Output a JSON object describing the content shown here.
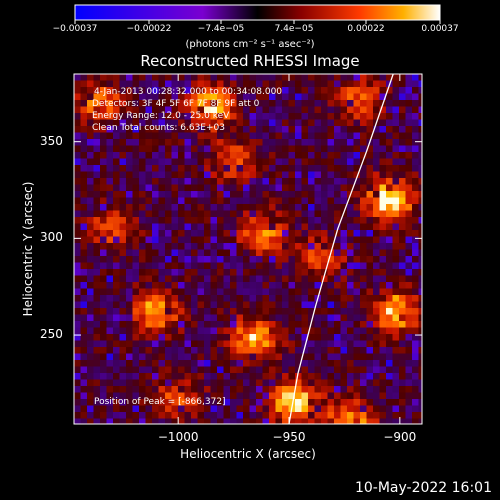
{
  "chart_data": {
    "type": "heatmap",
    "title": "Reconstructed RHESSI Image",
    "xlabel": "Heliocentric X (arcsec)",
    "ylabel": "Heliocentric Y (arcsec)",
    "xlim": [
      -1047,
      -890
    ],
    "ylim": [
      204,
      385
    ],
    "x_ticks": [
      -1000,
      -950,
      -900
    ],
    "x_tick_labels": [
      "−1000",
      "−950",
      "−900"
    ],
    "y_ticks": [
      250,
      300,
      350
    ],
    "y_tick_labels": [
      "250",
      "300",
      "350"
    ],
    "colorbar": {
      "range": [
        -0.00037,
        0.00037
      ],
      "ticks": [
        -0.00037,
        -0.00022,
        -7.4e-05,
        7.4e-05,
        0.00022,
        0.00037
      ],
      "tick_labels": [
        "−0.00037",
        "−0.00022",
        "−7.4e−05",
        "7.4e−05",
        "0.00022",
        "0.00037"
      ],
      "label": "(photons cm⁻² s⁻¹ asec⁻²)"
    },
    "annotations": {
      "time": "4-Jan-2013 00:28:32.000 to 00:34:08.000",
      "detectors": "Detectors: 3F 4F 5F 6F 7F 8F 9F  att 0",
      "energy": "Energy Range: 12.0 - 25.0 keV",
      "clean": "Clean     Total counts: 6.63E+03",
      "peak": "Position of Peak = [-866,372]"
    },
    "limb_curve": [
      [
        -950,
        204
      ],
      [
        -946,
        230
      ],
      [
        -938,
        265
      ],
      [
        -928,
        305
      ],
      [
        -915,
        345
      ],
      [
        -903,
        385
      ]
    ],
    "hot_regions": [
      {
        "x": -905,
        "y": 320,
        "level": 1.0
      },
      {
        "x": -902,
        "y": 262,
        "level": 0.85
      },
      {
        "x": -1010,
        "y": 262,
        "level": 0.75
      },
      {
        "x": -966,
        "y": 248,
        "level": 0.8
      },
      {
        "x": -948,
        "y": 215,
        "level": 0.9
      },
      {
        "x": -922,
        "y": 206,
        "level": 0.75
      },
      {
        "x": -985,
        "y": 368,
        "level": 0.8
      },
      {
        "x": -962,
        "y": 303,
        "level": 0.65
      },
      {
        "x": -918,
        "y": 372,
        "level": 0.6
      },
      {
        "x": -935,
        "y": 290,
        "level": 0.55
      },
      {
        "x": -1035,
        "y": 370,
        "level": 0.6
      },
      {
        "x": -1000,
        "y": 218,
        "level": 0.5
      },
      {
        "x": -1030,
        "y": 305,
        "level": 0.5
      },
      {
        "x": -975,
        "y": 340,
        "level": 0.55
      }
    ]
  },
  "footer": {
    "timestamp": "10-May-2022 16:01"
  }
}
